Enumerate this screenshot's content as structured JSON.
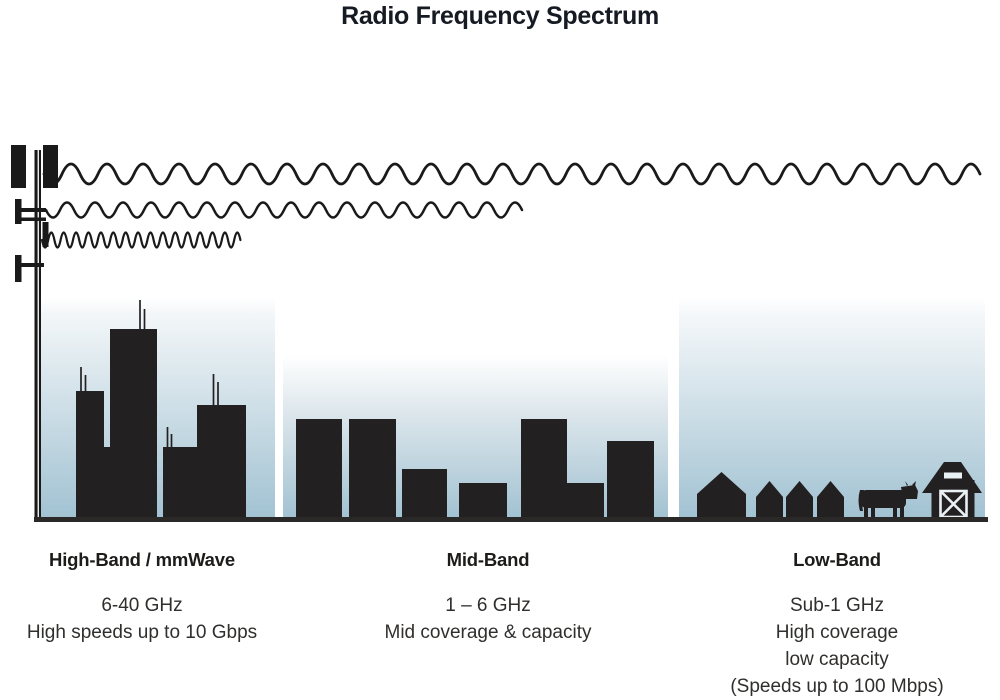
{
  "title": "Radio Frequency Spectrum",
  "bands": [
    {
      "name": "High-Band / mmWave",
      "details": [
        "6-40 GHz",
        "High speeds up to 10 Gbps"
      ]
    },
    {
      "name": "Mid-Band",
      "details": [
        "1 – 6 GHz",
        "Mid coverage & capacity"
      ]
    },
    {
      "name": "Low-Band",
      "details": [
        "Sub-1 GHz",
        "High coverage",
        "low capacity",
        "(Speeds up to 100 Mbps)"
      ]
    }
  ],
  "icons": [
    "cell-tower-icon",
    "low-band-wave-icon",
    "mid-band-wave-icon",
    "high-band-wave-icon",
    "city-skyline-icon",
    "town-skyline-icon",
    "house-icon",
    "cow-icon",
    "barn-icon"
  ],
  "colors": {
    "silhouette": "#232021",
    "wave_stroke": "#1a1a1a",
    "gradient_top": "#ffffff",
    "gradient_bottom": "#a2c2d2",
    "ground": "#2b2927",
    "title_text": "#151a23",
    "label_text": "#302f2d"
  }
}
